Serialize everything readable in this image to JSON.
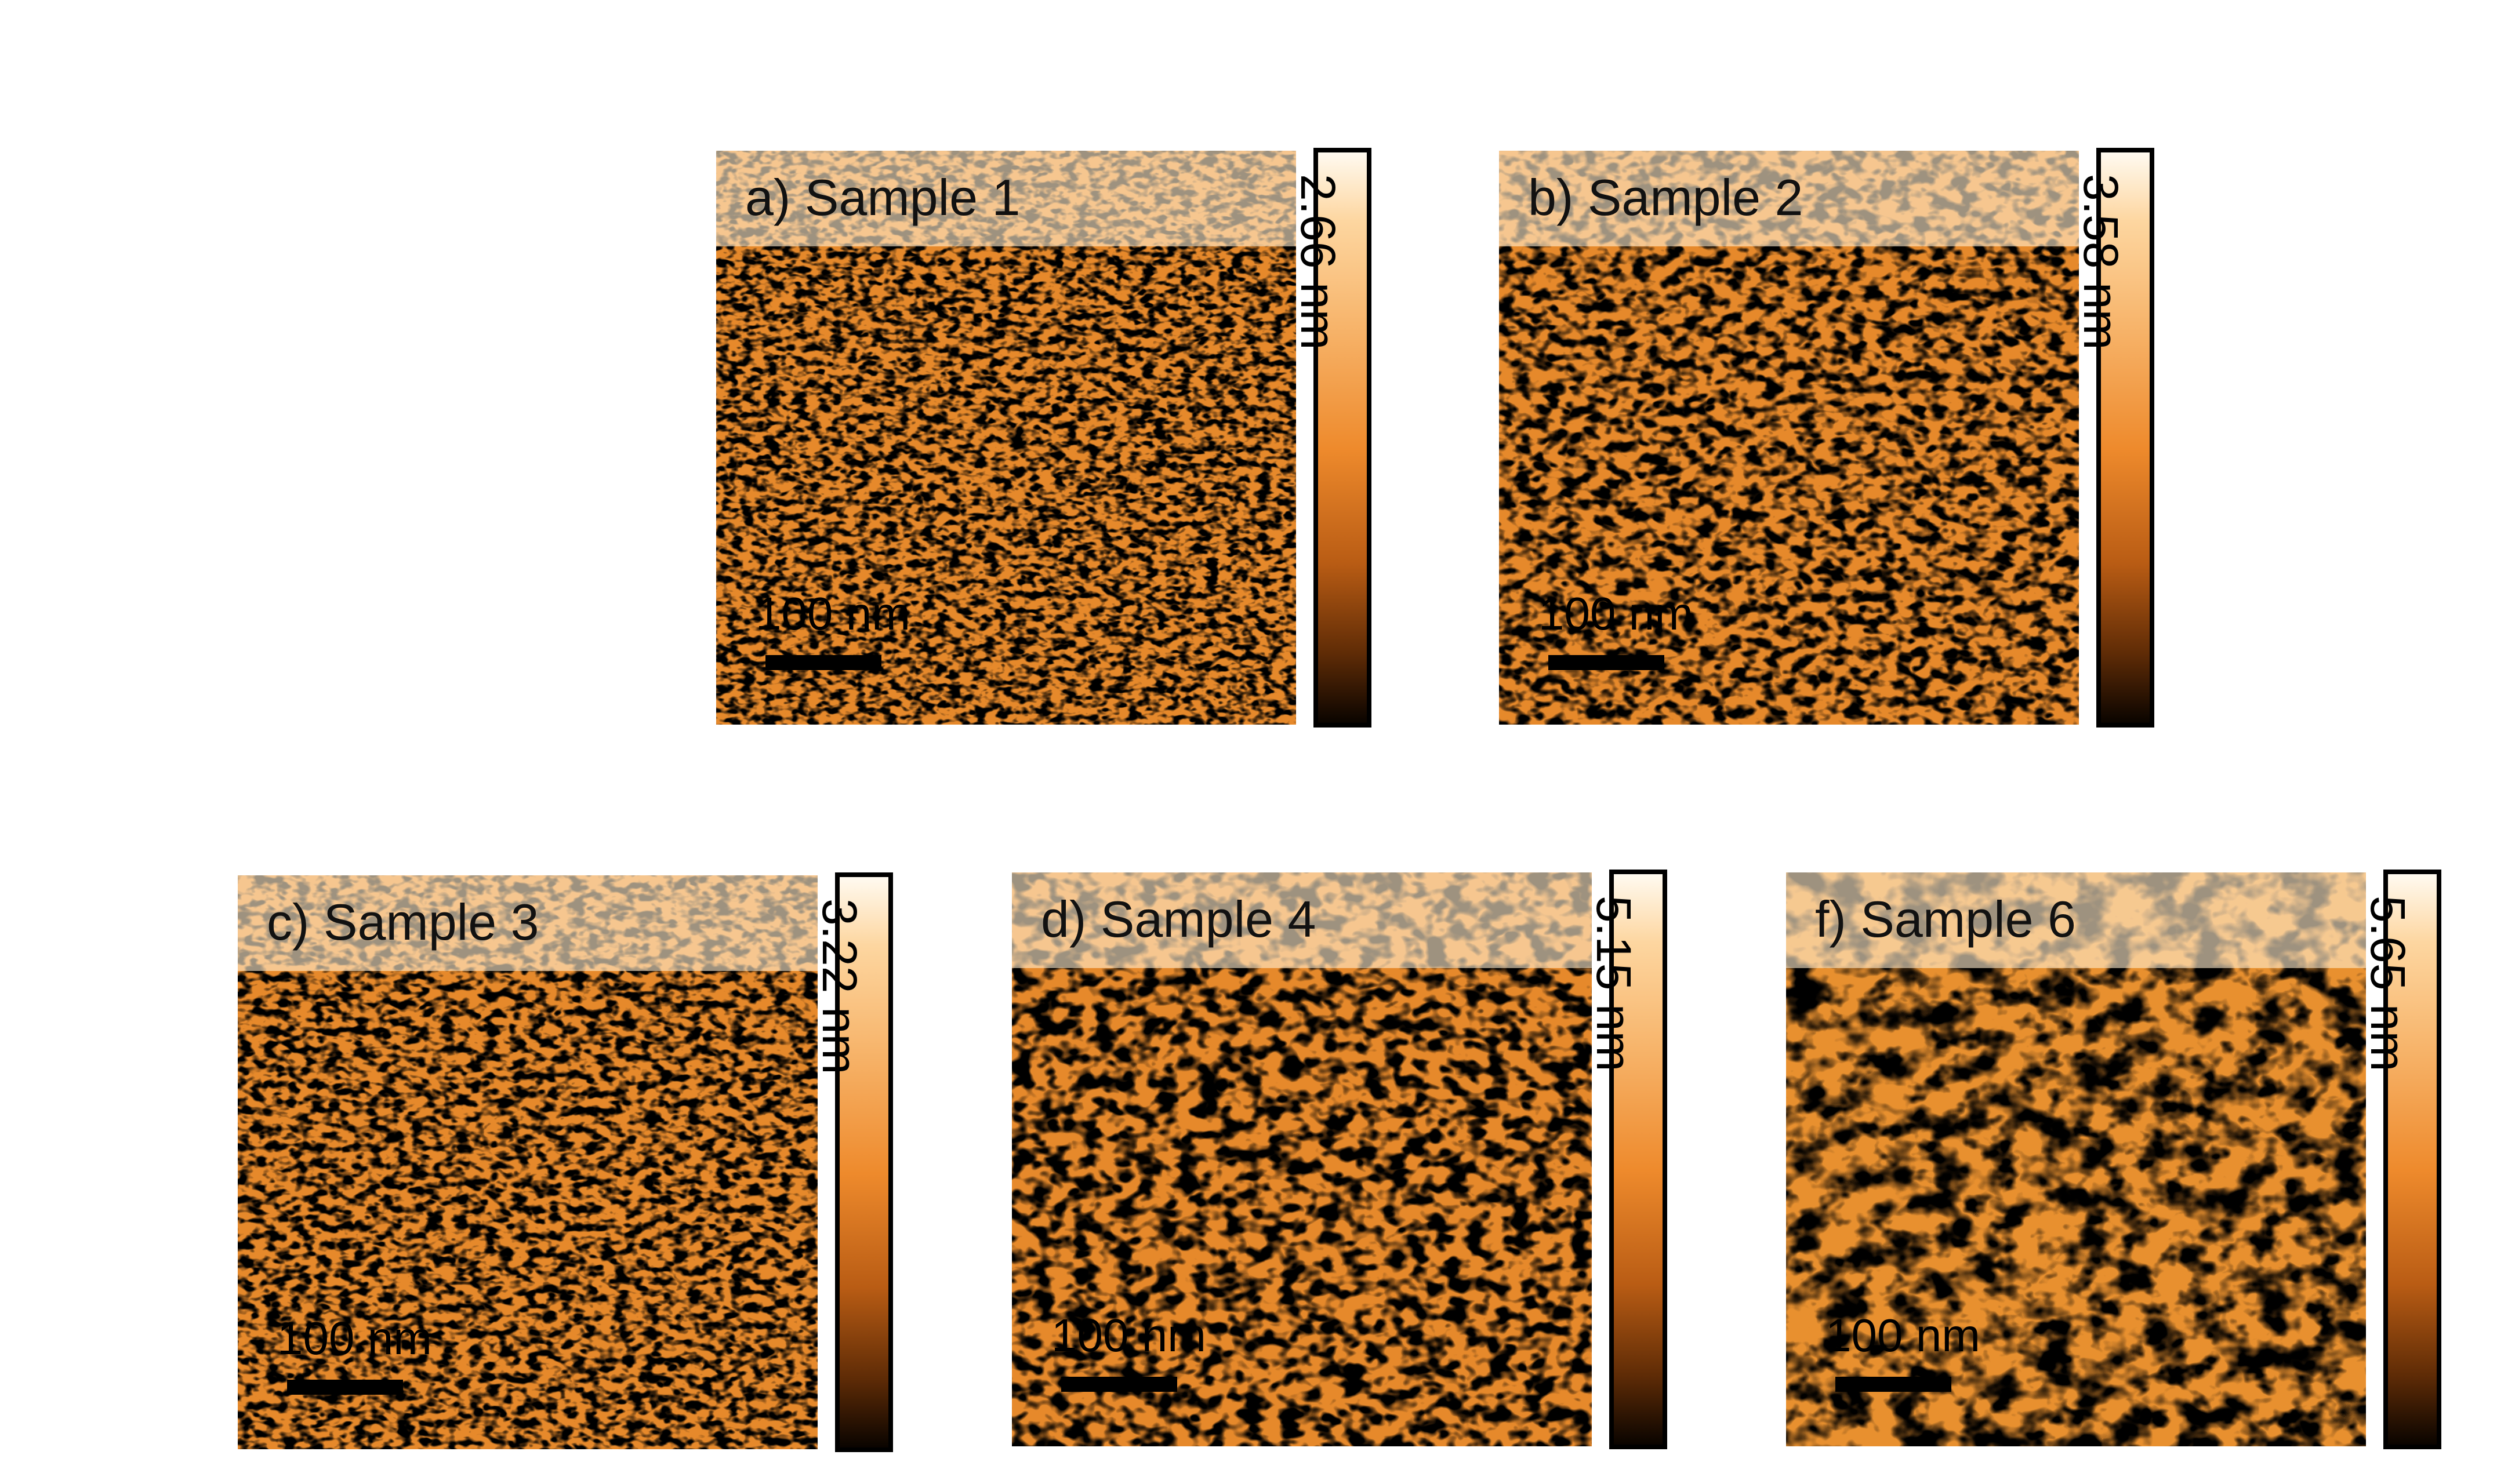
{
  "panels": [
    {
      "id": "a",
      "title": "a) Sample 1",
      "scale_bar_label": "100 nm",
      "height_scale": "2.66 nm"
    },
    {
      "id": "b",
      "title": "b) Sample 2",
      "scale_bar_label": "100 nm",
      "height_scale": "3.58 nm"
    },
    {
      "id": "c",
      "title": "c) Sample 3",
      "scale_bar_label": "100 nm",
      "height_scale": "3.22 nm"
    },
    {
      "id": "d",
      "title": "d) Sample 4",
      "scale_bar_label": "100 nm",
      "height_scale": "5.15 nm"
    },
    {
      "id": "f",
      "title": "f) Sample 6",
      "scale_bar_label": "100 nm",
      "height_scale": "5.65 nm"
    }
  ],
  "colors": {
    "colormap_top": "#fffaf0",
    "colormap_mid": "#ee8a2c",
    "colormap_bottom": "#0a0400",
    "label_band": "#ffecd0"
  },
  "texture": {
    "grain": [
      "fine",
      "fine",
      "fine",
      "medium",
      "coarse"
    ]
  }
}
